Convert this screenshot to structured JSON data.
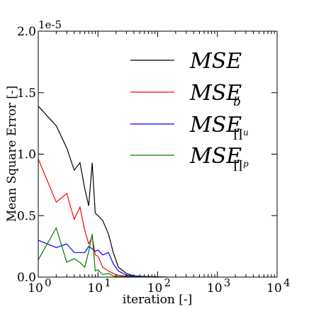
{
  "chart_data": {
    "type": "line",
    "xlabel": "iteration [-]",
    "ylabel": "Mean Square Error [-]",
    "y_offset_label": "1e-5",
    "xscale": "log",
    "xlim": [
      1,
      10000
    ],
    "ylim": [
      0,
      2e-05
    ],
    "grid": false,
    "legend_position": "top-right",
    "x_ticks": [
      {
        "value": 1,
        "base": "10",
        "exp": "0"
      },
      {
        "value": 10,
        "base": "10",
        "exp": "1"
      },
      {
        "value": 100,
        "base": "10",
        "exp": "2"
      },
      {
        "value": 1000,
        "base": "10",
        "exp": "3"
      },
      {
        "value": 10000,
        "base": "10",
        "exp": "4"
      }
    ],
    "y_ticks": [
      {
        "value": 0.0,
        "label": "0.0"
      },
      {
        "value": 5e-06,
        "label": "0.5"
      },
      {
        "value": 1e-05,
        "label": "1.0"
      },
      {
        "value": 1.5e-05,
        "label": "1.5"
      },
      {
        "value": 2e-05,
        "label": "2.0"
      }
    ],
    "series": [
      {
        "name": "MSE",
        "legend_main": "MSE",
        "legend_sub": "",
        "legend_subsub": "",
        "color": "#000000",
        "x": [
          1,
          2,
          3,
          4,
          5,
          6,
          7,
          8,
          9,
          10,
          12,
          15,
          18,
          22,
          30,
          40,
          60,
          100,
          150
        ],
        "y": [
          1.39e-05,
          1.23e-05,
          1.05e-05,
          8.7e-06,
          9.3e-06,
          7.2e-06,
          5.8e-06,
          9.3e-06,
          5.2e-06,
          5e-06,
          4.6e-06,
          3.5e-06,
          2e-06,
          8e-07,
          3e-07,
          1e-07,
          5e-08,
          2e-08,
          0.0
        ]
      },
      {
        "name": "MSE_b",
        "legend_main": "MSE",
        "legend_sub": "b",
        "legend_subsub": "",
        "color": "#ff0000",
        "x": [
          1,
          2,
          3,
          4,
          5,
          6,
          7,
          8,
          9,
          10,
          12,
          15,
          18,
          22,
          30,
          40,
          60,
          100
        ],
        "y": [
          9.6e-06,
          6.1e-06,
          6.8e-06,
          4.7e-06,
          5.7e-06,
          3.8e-06,
          2.7e-06,
          3.3e-06,
          1.8e-06,
          1.7e-06,
          8e-07,
          5e-07,
          3e-07,
          1.5e-07,
          8e-08,
          4e-08,
          2e-08,
          0.0
        ]
      },
      {
        "name": "MSE_Πu",
        "legend_main": "MSE",
        "legend_sub": "∏",
        "legend_subsub": "u",
        "color": "#0000ff",
        "x": [
          1,
          2,
          3,
          4,
          5,
          6,
          7,
          8,
          9,
          10,
          12,
          15,
          18,
          22,
          30,
          40,
          60,
          100
        ],
        "y": [
          3e-06,
          2.4e-06,
          2.7e-06,
          2e-06,
          2e-06,
          2e-06,
          2.5e-06,
          2.3e-06,
          2.1e-06,
          2.2e-06,
          1.8e-06,
          2e-06,
          1.1e-06,
          5e-07,
          1.5e-07,
          8e-08,
          3e-08,
          0.0
        ]
      },
      {
        "name": "MSE_Πp",
        "legend_main": "MSE",
        "legend_sub": "∏",
        "legend_subsub": "p",
        "color": "#008000",
        "x": [
          1,
          2,
          3,
          4,
          5,
          6,
          7,
          8,
          9,
          10,
          12,
          15,
          18,
          22,
          30,
          40,
          60,
          100
        ],
        "y": [
          1.4e-06,
          4e-06,
          1.2e-06,
          1.5e-06,
          1.2e-06,
          8e-07,
          2.1e-06,
          3.5e-06,
          5e-07,
          6e-07,
          2e-07,
          3e-07,
          1e-07,
          5e-08,
          3e-08,
          2e-08,
          1e-08,
          0.0
        ]
      }
    ]
  }
}
